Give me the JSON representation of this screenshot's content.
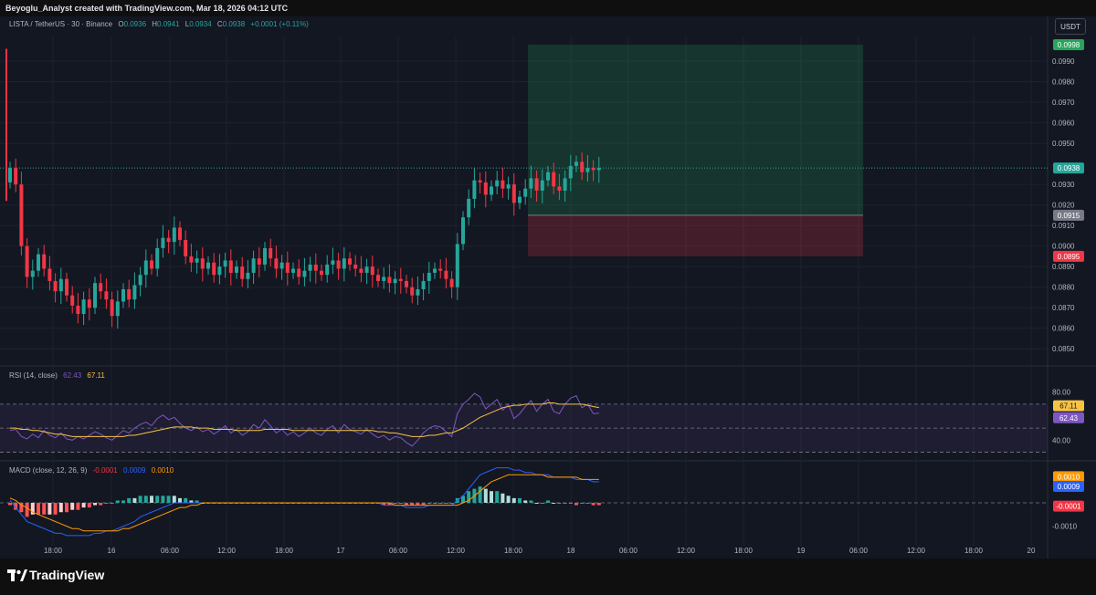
{
  "header": {
    "credit": "Beyoglu_Analyst created with TradingView.com, Mar 18, 2026 04:12 UTC"
  },
  "legend": {
    "symbol": "LISTA / TetherUS · 30 · Binance",
    "open_key": "O",
    "open": "0.0936",
    "high_key": "H",
    "high": "0.0941",
    "low_key": "L",
    "low": "0.0934",
    "close_key": "C",
    "close": "0.0938",
    "change": "+0.0001 (+0.11%)"
  },
  "currency_button": "USDT",
  "rsi_legend": {
    "name": "RSI (14, close)",
    "rsi": "62.43",
    "ma": "67.11"
  },
  "macd_legend": {
    "name": "MACD (close, 12, 26, 9)",
    "hist": "-0.0001",
    "macd": "0.0009",
    "signal": "0.0010"
  },
  "brand": "TradingView",
  "colors": {
    "up": "#26a69a",
    "down": "#f23645",
    "rsi": "#7e57c2",
    "rsi_ma": "#f6c343",
    "macd": "#2962ff",
    "signal": "#ff9800"
  },
  "chart_data": [
    {
      "type": "candlestick",
      "title": "LISTA / TetherUS · 30 · Binance",
      "y_ticks": [
        "0.0990",
        "0.0980",
        "0.0970",
        "0.0960",
        "0.0950",
        "0.0930",
        "0.0920",
        "0.0910",
        "0.0900",
        "0.0890",
        "0.0880",
        "0.0870",
        "0.0860",
        "0.0850"
      ],
      "x_ticks": [
        "18:00",
        "16",
        "06:00",
        "12:00",
        "18:00",
        "17",
        "06:00",
        "12:00",
        "18:00",
        "18",
        "06:00",
        "12:00",
        "18:00",
        "19",
        "06:00",
        "12:00",
        "18:00",
        "20"
      ],
      "ylim": [
        0.0843,
        0.1002
      ],
      "closes": [
        0.0938,
        0.093,
        0.09,
        0.0885,
        0.0888,
        0.0896,
        0.0889,
        0.0883,
        0.0878,
        0.0884,
        0.0876,
        0.0871,
        0.0867,
        0.0874,
        0.087,
        0.0882,
        0.0878,
        0.0874,
        0.0866,
        0.0873,
        0.0879,
        0.0874,
        0.0881,
        0.0886,
        0.0893,
        0.0889,
        0.0899,
        0.0904,
        0.0902,
        0.0909,
        0.0903,
        0.0895,
        0.0892,
        0.0894,
        0.0889,
        0.0892,
        0.0886,
        0.089,
        0.0893,
        0.0887,
        0.089,
        0.0884,
        0.0887,
        0.0894,
        0.0891,
        0.0899,
        0.0894,
        0.0889,
        0.0892,
        0.0887,
        0.0889,
        0.0885,
        0.0888,
        0.0891,
        0.0888,
        0.0886,
        0.0891,
        0.0893,
        0.0889,
        0.0894,
        0.0891,
        0.0889,
        0.0887,
        0.089,
        0.0886,
        0.0883,
        0.0885,
        0.0882,
        0.0884,
        0.0883,
        0.088,
        0.0876,
        0.0879,
        0.0883,
        0.0887,
        0.0889,
        0.0888,
        0.0884,
        0.088,
        0.0901,
        0.0914,
        0.0923,
        0.0932,
        0.0931,
        0.0925,
        0.0929,
        0.0932,
        0.0928,
        0.093,
        0.0921,
        0.0924,
        0.0928,
        0.0933,
        0.0927,
        0.0932,
        0.0936,
        0.0929,
        0.0927,
        0.0933,
        0.0939,
        0.0941,
        0.0936,
        0.0938,
        0.0937,
        0.0938
      ],
      "open_first": 0.0931,
      "trade": {
        "take_profit": "0.0998",
        "current": "0.0938",
        "entry": "0.0915",
        "stop_loss": "0.0895"
      }
    },
    {
      "type": "line",
      "title": "RSI (14, close)",
      "y_ticks": [
        "80.00",
        "40.00"
      ],
      "ylim": [
        25,
        95
      ],
      "bands": [
        70,
        50,
        30
      ],
      "series": [
        {
          "name": "RSI",
          "values": [
            48,
            49,
            43,
            41,
            45,
            42,
            48,
            44,
            42,
            46,
            41,
            40,
            43,
            41,
            44,
            47,
            45,
            42,
            40,
            44,
            48,
            46,
            50,
            53,
            55,
            52,
            58,
            61,
            57,
            59,
            54,
            50,
            48,
            51,
            47,
            49,
            45,
            48,
            52,
            46,
            49,
            44,
            47,
            53,
            50,
            57,
            52,
            46,
            49,
            44,
            47,
            43,
            46,
            50,
            46,
            44,
            49,
            52,
            46,
            53,
            49,
            47,
            45,
            49,
            45,
            42,
            44,
            40,
            43,
            42,
            38,
            35,
            40,
            46,
            50,
            52,
            51,
            47,
            43,
            62,
            70,
            74,
            79,
            76,
            66,
            70,
            74,
            65,
            70,
            58,
            62,
            68,
            73,
            64,
            70,
            74,
            64,
            62,
            70,
            75,
            77,
            67,
            70,
            62,
            62.43
          ]
        },
        {
          "name": "MA",
          "values": [
            50,
            50,
            49,
            49,
            48,
            48,
            47,
            46,
            45,
            45,
            44,
            43,
            43,
            43,
            43,
            43,
            43,
            43,
            43,
            43,
            43,
            44,
            44,
            45,
            46,
            47,
            48,
            49,
            50,
            51,
            51,
            51,
            51,
            50,
            50,
            50,
            49,
            49,
            49,
            49,
            48,
            48,
            48,
            48,
            48,
            49,
            49,
            49,
            49,
            49,
            48,
            48,
            48,
            48,
            48,
            48,
            48,
            48,
            48,
            48,
            48,
            48,
            48,
            48,
            48,
            47,
            47,
            46,
            46,
            45,
            44,
            43,
            43,
            43,
            44,
            44,
            45,
            46,
            46,
            48,
            50,
            53,
            56,
            59,
            61,
            63,
            65,
            67,
            68,
            69,
            69,
            70,
            70,
            70,
            70,
            71,
            71,
            70,
            70,
            70,
            70,
            70,
            69,
            68,
            67.11
          ]
        }
      ]
    },
    {
      "type": "line",
      "title": "MACD (close, 12, 26, 9)",
      "y_ticks": [
        "-0.0010"
      ],
      "ylim": [
        -0.0016,
        0.0016
      ],
      "series": [
        {
          "name": "MACD",
          "values": [
            0.0001,
            -0.0002,
            -0.0005,
            -0.0008,
            -0.0009,
            -0.001,
            -0.0011,
            -0.0012,
            -0.0013,
            -0.0013,
            -0.0014,
            -0.0014,
            -0.0014,
            -0.0014,
            -0.0014,
            -0.0013,
            -0.0013,
            -0.0012,
            -0.0012,
            -0.0011,
            -0.001,
            -0.0009,
            -0.0008,
            -0.0006,
            -0.0005,
            -0.0004,
            -0.0003,
            -0.0002,
            -0.0001,
            0.0,
            0.0,
            0.0,
            0.0,
            0.0,
            0.0,
            0.0,
            0.0,
            0.0,
            0.0,
            0.0,
            0.0,
            0.0,
            0.0,
            0.0,
            0.0,
            0.0,
            0.0,
            0.0,
            0.0,
            0.0,
            0.0,
            0.0,
            0.0,
            0.0,
            0.0,
            0.0,
            0.0,
            0.0,
            0.0,
            0.0,
            0.0,
            0.0,
            0.0,
            0.0,
            0.0,
            0.0,
            -0.0001,
            -0.0001,
            -0.0001,
            -0.0001,
            -0.0002,
            -0.0002,
            -0.0002,
            -0.0002,
            -0.0001,
            -0.0001,
            -0.0001,
            -0.0001,
            -0.0001,
            0.0001,
            0.0003,
            0.0006,
            0.0009,
            0.0012,
            0.0013,
            0.0014,
            0.0015,
            0.0015,
            0.0015,
            0.0014,
            0.0014,
            0.0013,
            0.0013,
            0.0012,
            0.0012,
            0.0012,
            0.0011,
            0.0011,
            0.0011,
            0.0011,
            0.001,
            0.001,
            0.001,
            0.0009,
            0.0009
          ]
        },
        {
          "name": "Signal",
          "values": [
            0.0002,
            0.0001,
            -0.0001,
            -0.0002,
            -0.0004,
            -0.0005,
            -0.0006,
            -0.0007,
            -0.0008,
            -0.0009,
            -0.001,
            -0.0011,
            -0.0011,
            -0.0012,
            -0.0012,
            -0.0012,
            -0.0012,
            -0.0012,
            -0.0012,
            -0.0012,
            -0.0011,
            -0.0011,
            -0.001,
            -0.0009,
            -0.0008,
            -0.0007,
            -0.0006,
            -0.0005,
            -0.0004,
            -0.0003,
            -0.0002,
            -0.0002,
            -0.0001,
            -0.0001,
            0.0,
            0.0,
            0.0,
            0.0,
            0.0,
            0.0,
            0.0,
            0.0,
            0.0,
            0.0,
            0.0,
            0.0,
            0.0,
            0.0,
            0.0,
            0.0,
            0.0,
            0.0,
            0.0,
            0.0,
            0.0,
            0.0,
            0.0,
            0.0,
            0.0,
            0.0,
            0.0,
            0.0,
            0.0,
            0.0,
            0.0,
            0.0,
            0.0,
            0.0,
            -0.0001,
            -0.0001,
            -0.0001,
            -0.0001,
            -0.0001,
            -0.0001,
            -0.0001,
            -0.0001,
            -0.0001,
            -0.0001,
            -0.0001,
            -0.0001,
            0.0,
            0.0001,
            0.0003,
            0.0005,
            0.0007,
            0.0009,
            0.001,
            0.0011,
            0.0012,
            0.0012,
            0.0012,
            0.0012,
            0.0012,
            0.0012,
            0.0012,
            0.0011,
            0.0011,
            0.0011,
            0.0011,
            0.0011,
            0.0011,
            0.001,
            0.001,
            0.001,
            0.001
          ]
        }
      ]
    }
  ]
}
